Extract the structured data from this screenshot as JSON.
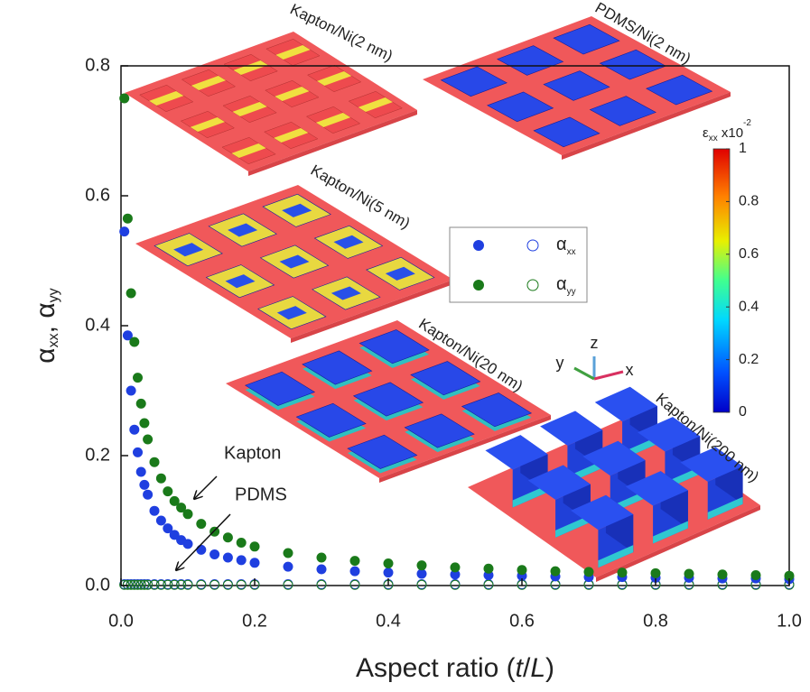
{
  "chart_data": {
    "type": "scatter",
    "xlabel": [
      "Aspect ratio (",
      "t",
      "/",
      "L",
      ")"
    ],
    "ylabel": [
      "α",
      "xx",
      ", α",
      "yy"
    ],
    "xlim": [
      0,
      1
    ],
    "ylim": [
      0,
      0.8
    ],
    "xticks": [
      {
        "value": 0,
        "label": "0.0"
      },
      0.2,
      0.4,
      0.6,
      0.8,
      {
        "value": 1,
        "label": "1.0"
      }
    ],
    "yticks": [
      {
        "value": 0,
        "label": "0.0"
      },
      0.2,
      0.4,
      0.6,
      0.8
    ],
    "x": [
      0.005,
      0.01,
      0.015,
      0.02,
      0.025,
      0.03,
      0.035,
      0.04,
      0.05,
      0.06,
      0.07,
      0.08,
      0.09,
      0.1,
      0.12,
      0.14,
      0.16,
      0.18,
      0.2,
      0.25,
      0.3,
      0.35,
      0.4,
      0.45,
      0.5,
      0.55,
      0.6,
      0.65,
      0.7,
      0.75,
      0.8,
      0.85,
      0.9,
      0.95,
      1.0
    ],
    "series": [
      {
        "name": "α",
        "name_sub": "xx",
        "color": "#1f3fe0",
        "values": [
          0.545,
          0.385,
          0.3,
          0.24,
          0.205,
          0.175,
          0.155,
          0.14,
          0.115,
          0.1,
          0.088,
          0.078,
          0.07,
          0.064,
          0.055,
          0.048,
          0.043,
          0.039,
          0.035,
          0.029,
          0.025,
          0.022,
          0.02,
          0.018,
          0.017,
          0.016,
          0.015,
          0.014,
          0.013,
          0.013,
          0.012,
          0.012,
          0.011,
          0.011,
          0.01
        ],
        "open_values": [
          0.002,
          0.002,
          0.002,
          0.002,
          0.002,
          0.002,
          0.002,
          0.002,
          0.002,
          0.002,
          0.002,
          0.002,
          0.002,
          0.002,
          0.002,
          0.002,
          0.002,
          0.002,
          0.002,
          0.002,
          0.002,
          0.002,
          0.002,
          0.002,
          0.002,
          0.002,
          0.002,
          0.002,
          0.002,
          0.002,
          0.002,
          0.002,
          0.002,
          0.002,
          0.002
        ]
      },
      {
        "name": "α",
        "name_sub": "yy",
        "color": "#1a7a1a",
        "values": [
          0.75,
          0.565,
          0.45,
          0.375,
          0.32,
          0.28,
          0.25,
          0.225,
          0.19,
          0.165,
          0.145,
          0.13,
          0.12,
          0.11,
          0.095,
          0.083,
          0.074,
          0.066,
          0.06,
          0.05,
          0.043,
          0.038,
          0.034,
          0.031,
          0.028,
          0.026,
          0.024,
          0.022,
          0.021,
          0.02,
          0.019,
          0.018,
          0.017,
          0.016,
          0.015
        ],
        "open_values": [
          0.001,
          0.001,
          0.001,
          0.001,
          0.001,
          0.001,
          0.001,
          0.001,
          0.001,
          0.001,
          0.001,
          0.001,
          0.001,
          0.001,
          0.001,
          0.001,
          0.001,
          0.001,
          0.001,
          0.001,
          0.001,
          0.001,
          0.001,
          0.001,
          0.001,
          0.001,
          0.001,
          0.001,
          0.001,
          0.001,
          0.001,
          0.001,
          0.001,
          0.001,
          0.001
        ]
      }
    ],
    "annotations": [
      "Kapton",
      "PDMS"
    ],
    "insets": [
      "Kapton/Ni(2 nm)",
      "PDMS/Ni(2 nm)",
      "Kapton/Ni(5 nm)",
      "Kapton/Ni(20 nm)",
      "Kapton/Ni(200 nm)"
    ],
    "axes_triad": [
      "x",
      "y",
      "z"
    ],
    "colorbar": {
      "title": [
        "ε",
        "xx",
        " x10",
        "-2"
      ],
      "lim": [
        0,
        1
      ],
      "ticks": [
        0,
        0.2,
        0.4,
        0.6,
        0.8,
        1
      ]
    }
  }
}
